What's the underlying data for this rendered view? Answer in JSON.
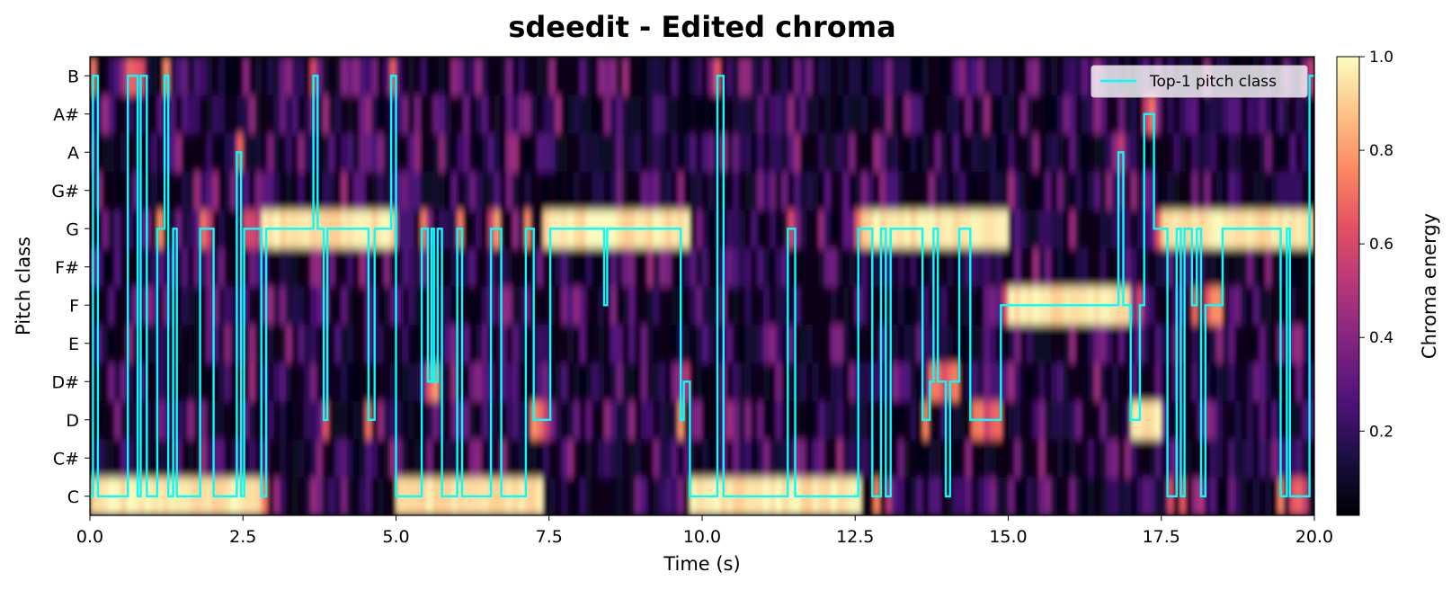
{
  "chart_data": {
    "type": "heatmap",
    "title": "sdeedit - Edited chroma",
    "xlabel": "Time (s)",
    "ylabel": "Pitch class",
    "xlim": [
      0,
      20
    ],
    "x_ticks": [
      "0.0",
      "2.5",
      "5.0",
      "7.5",
      "10.0",
      "12.5",
      "15.0",
      "17.5",
      "20.0"
    ],
    "y_categories": [
      "C",
      "C#",
      "D",
      "D#",
      "E",
      "F",
      "F#",
      "G",
      "G#",
      "A",
      "A#",
      "B"
    ],
    "colormap": "magma",
    "colorbar": {
      "label": "Chroma energy",
      "range": [
        0.02,
        1.0
      ],
      "ticks": [
        "0.2",
        "0.4",
        "0.6",
        "0.8",
        "1.0"
      ]
    },
    "dominant_energy_segments": [
      {
        "start": 0.0,
        "end": 2.8,
        "pitch": "C"
      },
      {
        "start": 2.8,
        "end": 5.0,
        "pitch": "G"
      },
      {
        "start": 5.0,
        "end": 7.4,
        "pitch": "C"
      },
      {
        "start": 7.4,
        "end": 9.8,
        "pitch": "G"
      },
      {
        "start": 9.8,
        "end": 12.6,
        "pitch": "C"
      },
      {
        "start": 12.6,
        "end": 15.0,
        "pitch": "G"
      },
      {
        "start": 15.0,
        "end": 17.0,
        "pitch": "F"
      },
      {
        "start": 17.0,
        "end": 17.5,
        "pitch": "D"
      },
      {
        "start": 17.5,
        "end": 20.0,
        "pitch": "G"
      }
    ],
    "series": [
      {
        "name": "Top-1 pitch class",
        "color": "#00ffff",
        "steps": [
          [
            0.0,
            "C"
          ],
          [
            0.05,
            "B"
          ],
          [
            0.13,
            "C"
          ],
          [
            0.62,
            "B"
          ],
          [
            0.78,
            "C"
          ],
          [
            0.83,
            "B"
          ],
          [
            0.93,
            "C"
          ],
          [
            1.1,
            "G"
          ],
          [
            1.22,
            "B"
          ],
          [
            1.28,
            "C"
          ],
          [
            1.36,
            "G"
          ],
          [
            1.42,
            "C"
          ],
          [
            1.8,
            "G"
          ],
          [
            2.02,
            "C"
          ],
          [
            2.4,
            "A"
          ],
          [
            2.47,
            "C"
          ],
          [
            2.52,
            "G"
          ],
          [
            2.8,
            "C"
          ],
          [
            2.88,
            "G"
          ],
          [
            3.65,
            "B"
          ],
          [
            3.72,
            "G"
          ],
          [
            3.82,
            "D"
          ],
          [
            3.88,
            "G"
          ],
          [
            4.55,
            "D"
          ],
          [
            4.65,
            "G"
          ],
          [
            4.92,
            "B"
          ],
          [
            5.0,
            "C"
          ],
          [
            5.42,
            "G"
          ],
          [
            5.52,
            "D#"
          ],
          [
            5.58,
            "G"
          ],
          [
            5.62,
            "D#"
          ],
          [
            5.68,
            "G"
          ],
          [
            5.75,
            "C"
          ],
          [
            6.0,
            "G"
          ],
          [
            6.08,
            "C"
          ],
          [
            6.55,
            "G"
          ],
          [
            6.72,
            "C"
          ],
          [
            7.12,
            "G"
          ],
          [
            7.25,
            "D"
          ],
          [
            7.52,
            "G"
          ],
          [
            8.4,
            "F"
          ],
          [
            8.45,
            "G"
          ],
          [
            9.65,
            "D"
          ],
          [
            9.7,
            "D#"
          ],
          [
            9.8,
            "C"
          ],
          [
            10.25,
            "B"
          ],
          [
            10.35,
            "C"
          ],
          [
            11.4,
            "G"
          ],
          [
            11.52,
            "C"
          ],
          [
            12.55,
            "G"
          ],
          [
            12.78,
            "C"
          ],
          [
            12.92,
            "G"
          ],
          [
            13.0,
            "C"
          ],
          [
            13.08,
            "G"
          ],
          [
            13.6,
            "D"
          ],
          [
            13.72,
            "D#"
          ],
          [
            13.78,
            "G"
          ],
          [
            13.85,
            "D#"
          ],
          [
            13.98,
            "C"
          ],
          [
            14.05,
            "D#"
          ],
          [
            14.2,
            "G"
          ],
          [
            14.38,
            "D"
          ],
          [
            14.88,
            "F"
          ],
          [
            16.8,
            "A"
          ],
          [
            16.88,
            "F"
          ],
          [
            17.0,
            "D"
          ],
          [
            17.15,
            "F"
          ],
          [
            17.22,
            "A#"
          ],
          [
            17.38,
            "G"
          ],
          [
            17.6,
            "C"
          ],
          [
            17.75,
            "G"
          ],
          [
            17.82,
            "C"
          ],
          [
            17.88,
            "G"
          ],
          [
            18.0,
            "F"
          ],
          [
            18.08,
            "G"
          ],
          [
            18.15,
            "C"
          ],
          [
            18.22,
            "F"
          ],
          [
            18.5,
            "G"
          ],
          [
            19.45,
            "C"
          ],
          [
            19.55,
            "G"
          ],
          [
            19.6,
            "C"
          ],
          [
            19.92,
            "B"
          ],
          [
            20.0,
            "B"
          ]
        ]
      }
    ],
    "legend": {
      "entries": [
        "Top-1 pitch class"
      ],
      "placement": "top-right"
    }
  }
}
